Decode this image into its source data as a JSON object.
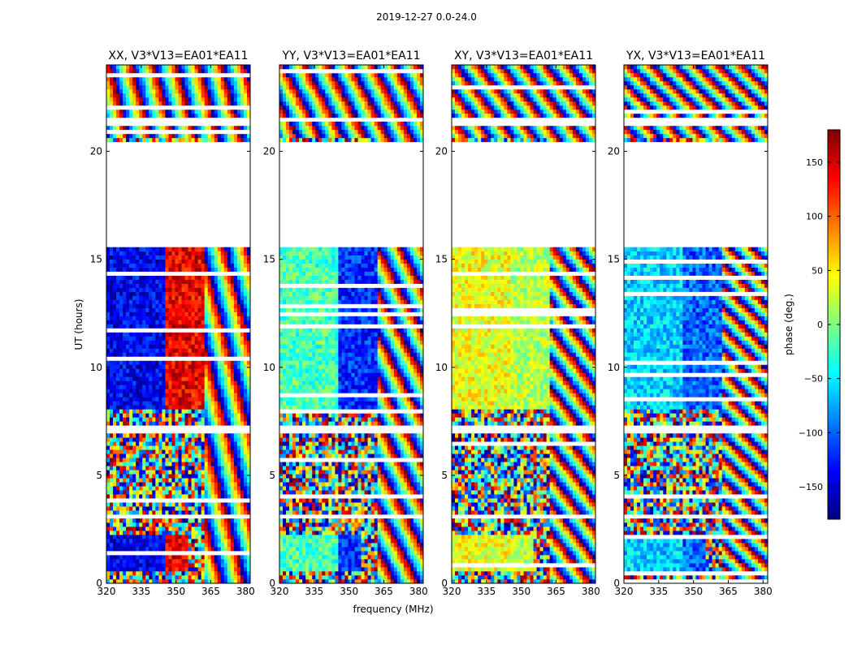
{
  "figure": {
    "suptitle": "2019-12-27 0.0-24.0",
    "xlabel": "frequency (MHz)",
    "ylabel": "UT (hours)"
  },
  "colorbar": {
    "label": "phase (deg.)",
    "ticks": [
      150,
      100,
      50,
      0,
      -50,
      -100,
      -150
    ],
    "tick_labels": [
      "150",
      "100",
      "50",
      "0",
      "−50",
      "−100",
      "−150"
    ],
    "range": [
      -180,
      180
    ],
    "colormap": "jet",
    "colors": [
      "#00007f",
      "#0000ff",
      "#007fff",
      "#00ffff",
      "#7fff7f",
      "#ffff00",
      "#ff7f00",
      "#ff0000",
      "#7f0000"
    ]
  },
  "chart_data": {
    "type": "heatmap",
    "title": "2019-12-27 0.0-24.0",
    "xlabel": "frequency (MHz)",
    "ylabel": "UT (hours)",
    "xlim": [
      320,
      382
    ],
    "ylim": [
      0,
      24
    ],
    "xticks": [
      320,
      335,
      350,
      365,
      380
    ],
    "yticks": [
      0,
      5,
      10,
      15,
      20
    ],
    "value_range": [
      -180,
      180
    ],
    "colorbar_label": "phase (deg.)",
    "gaps_ut_hours": [
      [
        15.6,
        20.5
      ],
      [
        6.9,
        7.4
      ],
      [
        3.0,
        3.2
      ],
      [
        21.35,
        21.55
      ]
    ],
    "panels": [
      {
        "title": "XX, V3*V13=EA01*EA11",
        "dominant_phase_mid_band": [
          -140,
          140
        ]
      },
      {
        "title": "YY, V3*V13=EA01*EA11",
        "dominant_phase_mid_band": [
          -20,
          -120
        ]
      },
      {
        "title": "XY, V3*V13=EA01*EA11",
        "dominant_phase_mid_band": [
          40,
          20
        ]
      },
      {
        "title": "YX, V3*V13=EA01*EA11",
        "dominant_phase_mid_band": [
          -60,
          -100
        ]
      }
    ]
  }
}
